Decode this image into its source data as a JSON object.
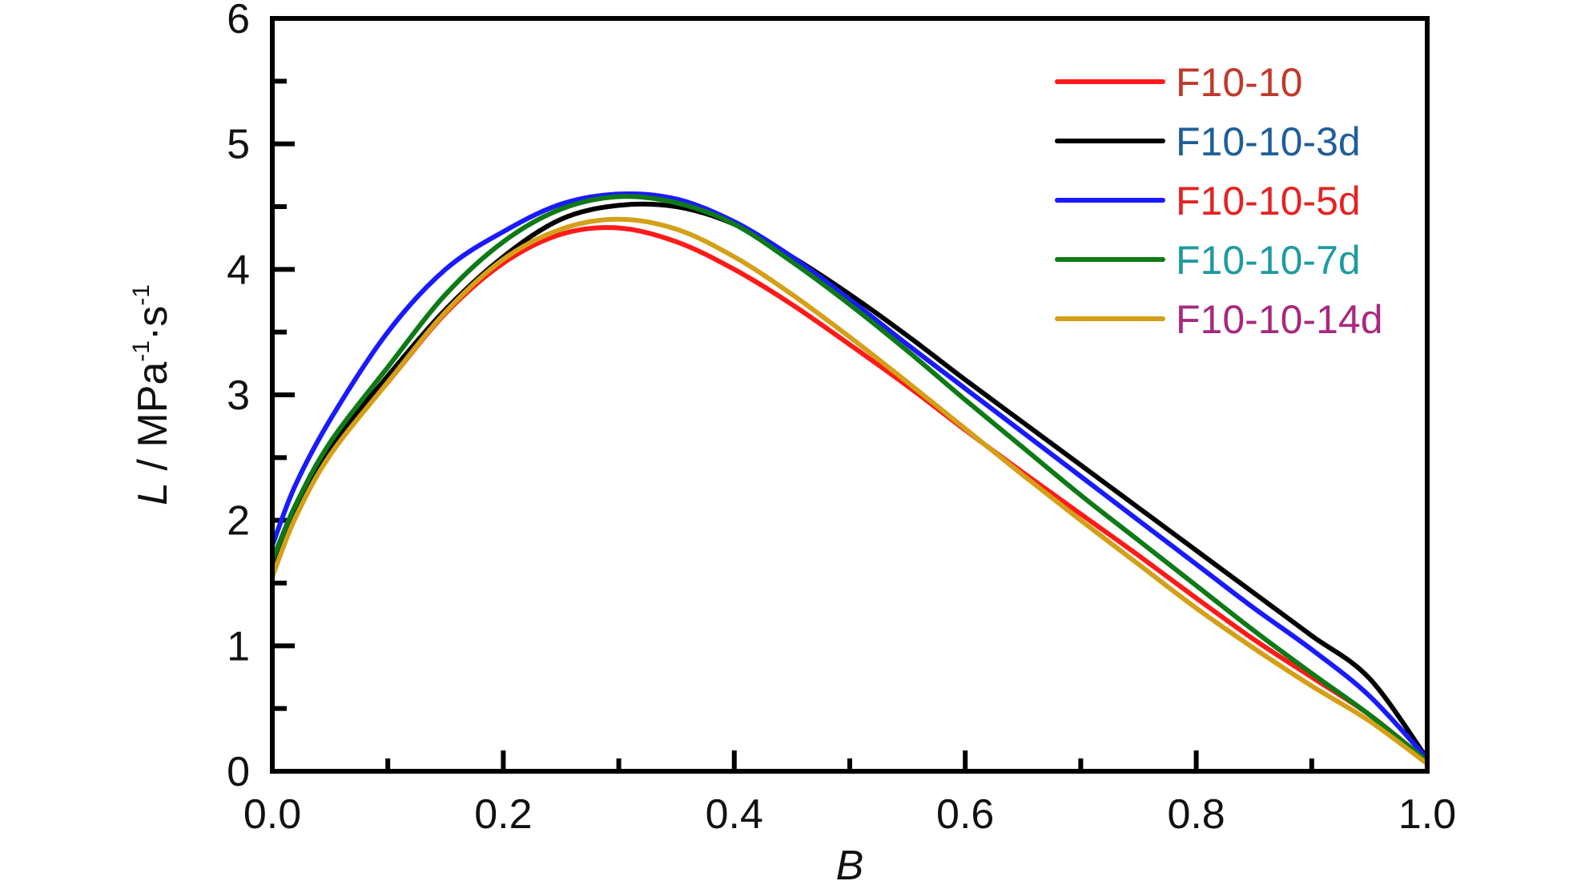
{
  "chart_data": {
    "type": "line",
    "title": "",
    "xlabel": "B",
    "ylabel": {
      "main": "L / MPa",
      "sup1": "-1",
      "mid": "·s",
      "sup2": "-1"
    },
    "xlim": [
      0,
      1
    ],
    "ylim": [
      0,
      6
    ],
    "x_ticks": [
      0.0,
      0.2,
      0.4,
      0.6,
      0.8,
      1.0
    ],
    "x_tick_labels": [
      "0.0",
      "0.2",
      "0.4",
      "0.6",
      "0.8",
      "1.0"
    ],
    "y_ticks": [
      0,
      1,
      2,
      3,
      4,
      5,
      6
    ],
    "y_tick_labels": [
      "0",
      "1",
      "2",
      "3",
      "4",
      "5",
      "6"
    ],
    "grid": false,
    "legend_position": "top-right",
    "x": [
      0.0,
      0.02,
      0.05,
      0.1,
      0.15,
      0.2,
      0.25,
      0.3,
      0.35,
      0.4,
      0.45,
      0.5,
      0.55,
      0.6,
      0.65,
      0.7,
      0.75,
      0.8,
      0.85,
      0.9,
      0.95,
      1.0
    ],
    "series": [
      {
        "name": "F10-10",
        "color": "#ff1a1a",
        "label_color": "#c0392b",
        "values": [
          1.58,
          2.05,
          2.55,
          3.1,
          3.65,
          4.05,
          4.28,
          4.33,
          4.22,
          4.0,
          3.72,
          3.4,
          3.07,
          2.72,
          2.38,
          2.05,
          1.72,
          1.38,
          1.05,
          0.75,
          0.45,
          0.08
        ]
      },
      {
        "name": "F10-10-3d",
        "color": "#000000",
        "label_color": "#1f5e9a",
        "values": [
          1.62,
          2.1,
          2.58,
          3.15,
          3.68,
          4.1,
          4.4,
          4.51,
          4.5,
          4.36,
          4.1,
          3.8,
          3.47,
          3.12,
          2.78,
          2.44,
          2.1,
          1.76,
          1.42,
          1.08,
          0.74,
          0.1
        ]
      },
      {
        "name": "F10-10-5d",
        "color": "#1a1aff",
        "label_color": "#e52222",
        "values": [
          1.8,
          2.28,
          2.8,
          3.5,
          4.0,
          4.3,
          4.52,
          4.6,
          4.56,
          4.38,
          4.1,
          3.76,
          3.4,
          3.05,
          2.7,
          2.35,
          2.0,
          1.65,
          1.3,
          0.97,
          0.6,
          0.1
        ]
      },
      {
        "name": "F10-10-7d",
        "color": "#0e7a16",
        "label_color": "#1f9aa1",
        "values": [
          1.68,
          2.12,
          2.62,
          3.22,
          3.8,
          4.22,
          4.48,
          4.58,
          4.53,
          4.36,
          4.06,
          3.72,
          3.35,
          2.96,
          2.58,
          2.2,
          1.84,
          1.48,
          1.12,
          0.78,
          0.45,
          0.08
        ]
      },
      {
        "name": "F10-10-14d",
        "color": "#d4a017",
        "label_color": "#a8287f",
        "values": [
          1.55,
          2.02,
          2.52,
          3.1,
          3.66,
          4.08,
          4.32,
          4.4,
          4.32,
          4.1,
          3.8,
          3.46,
          3.1,
          2.73,
          2.36,
          2.0,
          1.65,
          1.3,
          0.98,
          0.68,
          0.4,
          0.06
        ]
      }
    ]
  }
}
